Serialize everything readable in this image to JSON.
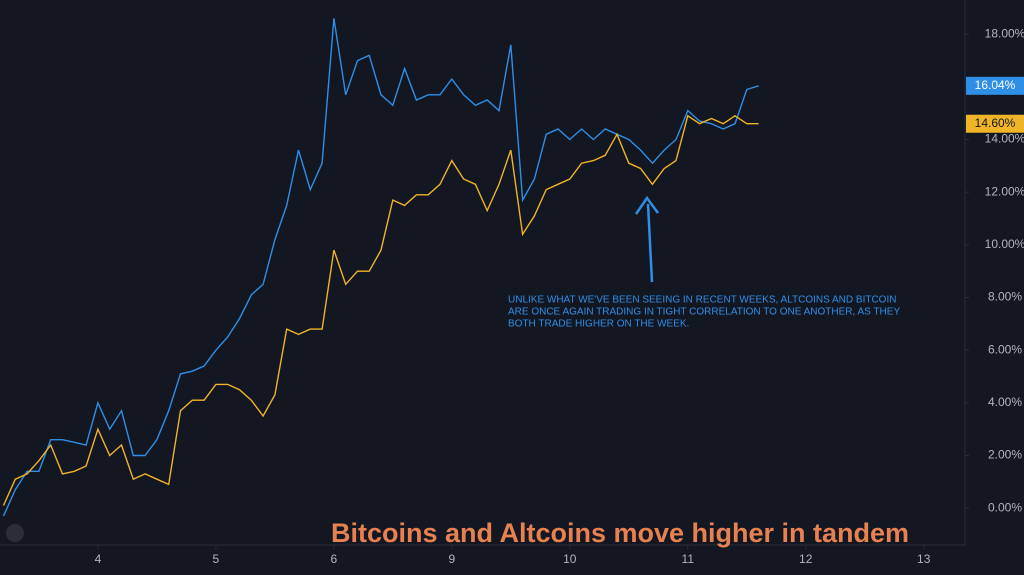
{
  "chart_data": {
    "type": "line",
    "title": "Bitcoins and Altcoins move higher in tandem",
    "annotation": [
      "UNLIKE WHAT WE'VE BEEN SEEING IN RECENT WEEKS, ALTCOINS AND BITCOIN",
      "ARE ONCE AGAIN TRADING IN TIGHT CORRELATION TO ONE ANOTHER, AS THEY",
      "BOTH TRADE HIGHER ON THE WEEK."
    ],
    "x": [
      3.2,
      3.3,
      3.4,
      3.5,
      3.6,
      3.7,
      3.8,
      3.9,
      4.0,
      4.1,
      4.2,
      4.3,
      4.4,
      4.5,
      4.6,
      4.7,
      4.8,
      4.9,
      5.0,
      5.1,
      5.2,
      5.3,
      5.4,
      5.5,
      5.6,
      5.7,
      5.8,
      5.9,
      6.0,
      6.1,
      6.2,
      6.3,
      6.4,
      6.5,
      6.6,
      6.7,
      6.8,
      6.9,
      7.0,
      7.1,
      7.2,
      7.3,
      7.4,
      7.5,
      7.6,
      7.7,
      7.8,
      7.9,
      8.0,
      8.1,
      8.2,
      8.3,
      8.4,
      8.5,
      8.6,
      8.7,
      8.8,
      8.9,
      9.0,
      9.1,
      9.2,
      9.3,
      9.4,
      9.5,
      9.6
    ],
    "series": [
      {
        "color": "#2f8fe6",
        "last_value_label": "16.04%",
        "values": [
          -0.3,
          0.7,
          1.4,
          1.4,
          2.6,
          2.6,
          2.5,
          2.4,
          4.0,
          3.0,
          3.7,
          2.0,
          2.0,
          2.6,
          3.7,
          5.1,
          5.2,
          5.4,
          6.0,
          6.5,
          7.2,
          8.1,
          8.5,
          10.2,
          11.5,
          13.6,
          12.1,
          13.1,
          18.6,
          15.7,
          17.0,
          17.2,
          15.7,
          15.3,
          16.7,
          15.5,
          15.7,
          15.7,
          16.3,
          15.7,
          15.3,
          15.5,
          15.1,
          17.6,
          11.7,
          12.5,
          14.2,
          14.4,
          14.0,
          14.4,
          14.0,
          14.4,
          14.2,
          14.0,
          13.6,
          13.1,
          13.6,
          14.0,
          15.1,
          14.7,
          14.6,
          14.4,
          14.6,
          15.9,
          16.04
        ]
      },
      {
        "color": "#f0b429",
        "last_value_label": "14.60%",
        "values": [
          0.1,
          1.1,
          1.3,
          1.8,
          2.4,
          1.3,
          1.4,
          1.6,
          3.0,
          2.0,
          2.4,
          1.1,
          1.3,
          1.1,
          0.9,
          3.7,
          4.1,
          4.1,
          4.7,
          4.7,
          4.5,
          4.1,
          3.5,
          4.3,
          6.8,
          6.6,
          6.8,
          6.8,
          9.8,
          8.5,
          9.0,
          9.0,
          9.8,
          11.7,
          11.5,
          11.9,
          11.9,
          12.3,
          13.2,
          12.5,
          12.3,
          11.3,
          12.3,
          13.6,
          10.4,
          11.1,
          12.1,
          12.3,
          12.5,
          13.1,
          13.2,
          13.4,
          14.2,
          13.1,
          12.9,
          12.3,
          12.9,
          13.2,
          14.9,
          14.6,
          14.8,
          14.6,
          14.9,
          14.6,
          14.6
        ]
      }
    ],
    "xlim": [
      3.17,
      11.35
    ],
    "xticks": [
      4,
      5,
      6,
      {
        "value": 7,
        "label": "9"
      },
      {
        "value": 8,
        "label": "10"
      },
      {
        "value": 9,
        "label": "11"
      },
      {
        "value": 10,
        "label": "12"
      },
      {
        "value": 11,
        "label": "13"
      }
    ],
    "ylim": [
      -1.4,
      19.3
    ],
    "yticks": [
      {
        "value": 0,
        "label": "0.00%"
      },
      {
        "value": 2,
        "label": "2.00%"
      },
      {
        "value": 4,
        "label": "4.00%"
      },
      {
        "value": 6,
        "label": "6.00%"
      },
      {
        "value": 8,
        "label": "8.00%"
      },
      {
        "value": 10,
        "label": "10.00%"
      },
      {
        "value": 12,
        "label": "12.00%"
      },
      {
        "value": 14,
        "label": "14.00%"
      },
      {
        "value": 16,
        "label": "16.00%"
      },
      {
        "value": 18,
        "label": "18.00%"
      }
    ]
  }
}
